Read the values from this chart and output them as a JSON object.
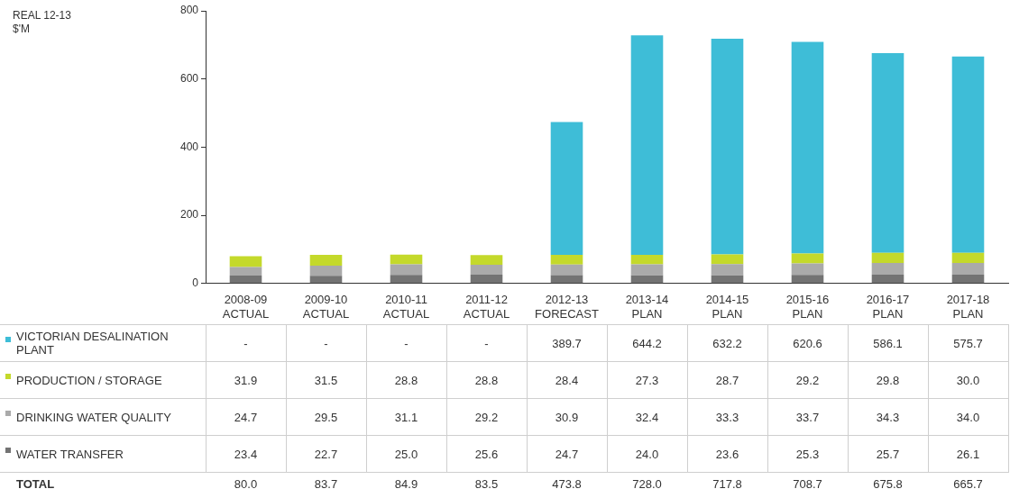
{
  "chart_data": {
    "type": "bar",
    "stacked": true,
    "ylim": [
      0,
      800
    ],
    "yticks": [
      0,
      200,
      400,
      600,
      800
    ],
    "grid": false,
    "legend": "bottom left",
    "data_labels": true,
    "categories": [
      "2008-09 ACTUAL",
      "2009-10 ACTUAL",
      "2010-11 ACTUAL",
      "2011-12 ACTUAL",
      "2012-13 FORECAST",
      "2013-14 PLAN",
      "2014-15 PLAN",
      "2015-16 PLAN",
      "2016-17 PLAN",
      "2017-18 PLAN"
    ],
    "series": [
      {
        "name": "WATER TRANSFER",
        "color": "#737373",
        "values": [
          23.4,
          22.7,
          25.0,
          25.6,
          24.7,
          24.0,
          23.6,
          25.3,
          25.7,
          26.1
        ],
        "value_labels": [
          "23.4",
          "22.7",
          "25.0",
          "25.6",
          "24.7",
          "24.0",
          "23.6",
          "25.3",
          "25.7",
          "26.1"
        ]
      },
      {
        "name": "DRINKING WATER QUALITY",
        "color": "#aaaaaa",
        "values": [
          24.7,
          29.5,
          31.1,
          29.2,
          30.9,
          32.4,
          33.3,
          33.7,
          34.3,
          34.0
        ],
        "value_labels": [
          "24.7",
          "29.5",
          "31.1",
          "29.2",
          "30.9",
          "32.4",
          "33.3",
          "33.7",
          "34.3",
          "34.0"
        ]
      },
      {
        "name": "PRODUCTION / STORAGE",
        "color": "#c4d92b",
        "values": [
          31.9,
          31.5,
          28.8,
          28.8,
          28.4,
          27.3,
          28.7,
          29.2,
          29.8,
          30.0
        ],
        "value_labels": [
          "31.9",
          "31.5",
          "28.8",
          "28.8",
          "28.4",
          "27.3",
          "28.7",
          "29.2",
          "29.8",
          "30.0"
        ]
      },
      {
        "name": "VICTORIAN DESALINATION PLANT",
        "color": "#3ebdd7",
        "values": [
          null,
          null,
          null,
          null,
          389.7,
          644.2,
          632.2,
          620.6,
          586.1,
          575.7
        ],
        "value_labels": [
          "-",
          "-",
          "-",
          "-",
          "389.7",
          "644.2",
          "632.2",
          "620.6",
          "586.1",
          "575.7"
        ]
      }
    ],
    "annotations": [
      "REAL 12-13 $'M",
      "TOTAL",
      "80.0",
      "83.7",
      "84.9",
      "83.5",
      "473.8",
      "728.0",
      "717.8",
      "708.7",
      "675.8",
      "665.7"
    ]
  }
}
